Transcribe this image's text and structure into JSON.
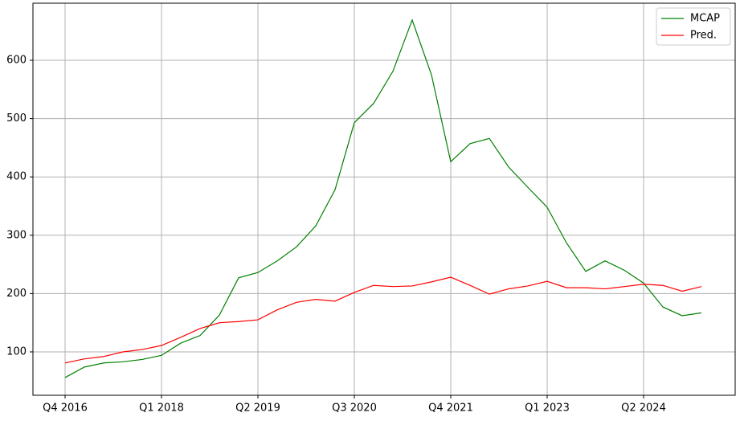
{
  "chart_data": {
    "type": "line",
    "categories": [
      "Q4 2016",
      null,
      null,
      null,
      null,
      "Q1 2018",
      null,
      null,
      null,
      null,
      "Q2 2019",
      null,
      null,
      null,
      null,
      "Q3 2020",
      null,
      null,
      null,
      null,
      "Q4 2021",
      null,
      null,
      null,
      null,
      "Q1 2023",
      null,
      null,
      null,
      null,
      "Q2 2024",
      null,
      null,
      null
    ],
    "series": [
      {
        "name": "MCAP",
        "color": "#008000",
        "values": [
          56,
          74,
          81,
          83,
          87,
          94,
          115,
          128,
          163,
          227,
          236,
          256,
          280,
          316,
          378,
          493,
          526,
          581,
          669,
          575,
          426,
          457,
          466,
          417,
          382,
          348,
          287,
          238,
          256,
          240,
          218,
          177,
          162,
          167
        ]
      },
      {
        "name": "Pred.",
        "color": "#ff0000",
        "values": [
          81,
          88,
          92,
          100,
          104,
          111,
          125,
          140,
          150,
          152,
          155,
          172,
          185,
          190,
          187,
          202,
          214,
          212,
          213,
          220,
          228,
          214,
          199,
          208,
          213,
          221,
          210,
          210,
          208,
          212,
          216,
          214,
          204,
          212
        ]
      }
    ],
    "ylim": [
      25.6,
      697.8
    ],
    "yticks": [
      100,
      200,
      300,
      400,
      500,
      600
    ],
    "grid": true,
    "legend": "upper-right"
  }
}
